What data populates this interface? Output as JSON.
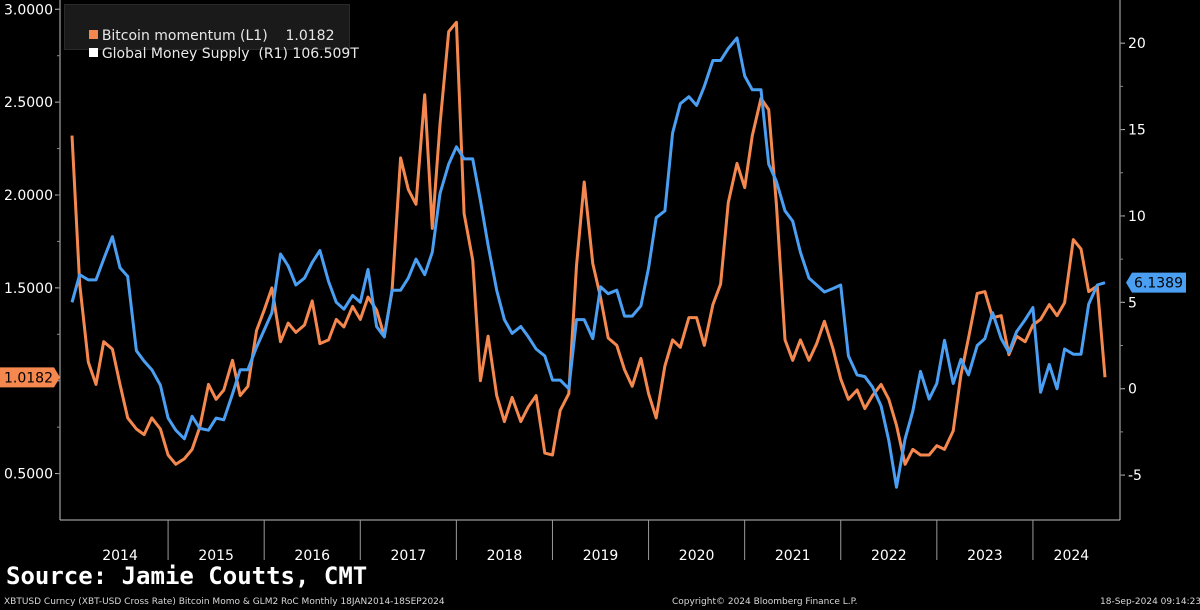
{
  "legend": {
    "series1_label": "Bitcoin momentum (L1)",
    "series1_value": "1.0182",
    "series2_label": "Global Money Supply  (R1)",
    "series2_value": "106.509T"
  },
  "source": "Source: Jamie Coutts, CMT",
  "footer": {
    "left": "XBTUSD Curncy (XBT-USD Cross Rate) Bitcoin Momo & GLM2 RoC  Monthly 18JAN2014-18SEP2024",
    "center": "Copyright© 2024 Bloomberg Finance L.P.",
    "right": "18-Sep-2024 09:14:23"
  },
  "colors": {
    "bitcoin": "#f5884e",
    "money": "#4a9ff2",
    "background": "#000000"
  },
  "chart_data": {
    "type": "line",
    "x_ticks": [
      "2014",
      "2015",
      "2016",
      "2017",
      "2018",
      "2019",
      "2020",
      "2021",
      "2022",
      "2023",
      "2024"
    ],
    "x_range": [
      2014.0,
      2024.75
    ],
    "y_left": {
      "ticks": [
        "0.5000",
        "1.0000",
        "1.5000",
        "2.0000",
        "2.5000",
        "3.0000"
      ],
      "ylim": [
        0.25,
        3.05
      ]
    },
    "y_right": {
      "ticks": [
        "-5",
        "0",
        "5",
        "10",
        "15",
        "20"
      ],
      "ylim": [
        -7.6,
        22.5
      ]
    },
    "last_value_labels": {
      "bitcoin": "1.0182",
      "money": "6.1389"
    },
    "series": [
      {
        "name": "Bitcoin momentum",
        "axis": "left",
        "x": [
          2014.0,
          2014.08,
          2014.17,
          2014.25,
          2014.33,
          2014.42,
          2014.5,
          2014.58,
          2014.67,
          2014.75,
          2014.83,
          2014.92,
          2015.0,
          2015.08,
          2015.17,
          2015.25,
          2015.33,
          2015.42,
          2015.5,
          2015.58,
          2015.67,
          2015.75,
          2015.83,
          2015.92,
          2016.0,
          2016.08,
          2016.17,
          2016.25,
          2016.33,
          2016.42,
          2016.5,
          2016.58,
          2016.67,
          2016.75,
          2016.83,
          2016.92,
          2017.0,
          2017.08,
          2017.17,
          2017.25,
          2017.33,
          2017.42,
          2017.5,
          2017.58,
          2017.67,
          2017.75,
          2017.83,
          2017.92,
          2018.0,
          2018.08,
          2018.17,
          2018.25,
          2018.33,
          2018.42,
          2018.5,
          2018.58,
          2018.67,
          2018.75,
          2018.83,
          2018.92,
          2019.0,
          2019.08,
          2019.17,
          2019.25,
          2019.33,
          2019.42,
          2019.5,
          2019.58,
          2019.67,
          2019.75,
          2019.83,
          2019.92,
          2020.0,
          2020.08,
          2020.17,
          2020.25,
          2020.33,
          2020.42,
          2020.5,
          2020.58,
          2020.67,
          2020.75,
          2020.83,
          2020.92,
          2021.0,
          2021.08,
          2021.17,
          2021.25,
          2021.33,
          2021.42,
          2021.5,
          2021.58,
          2021.67,
          2021.75,
          2021.83,
          2021.92,
          2022.0,
          2022.08,
          2022.17,
          2022.25,
          2022.33,
          2022.42,
          2022.5,
          2022.58,
          2022.67,
          2022.75,
          2022.83,
          2022.92,
          2023.0,
          2023.08,
          2023.17,
          2023.25,
          2023.33,
          2023.42,
          2023.5,
          2023.58,
          2023.67,
          2023.75,
          2023.83,
          2023.92,
          2024.0,
          2024.08,
          2024.17,
          2024.25,
          2024.33,
          2024.42,
          2024.5,
          2024.58,
          2024.67
        ],
        "values": [
          2.32,
          1.52,
          1.1,
          0.98,
          1.21,
          1.17,
          0.98,
          0.8,
          0.74,
          0.71,
          0.8,
          0.74,
          0.6,
          0.55,
          0.58,
          0.63,
          0.75,
          0.98,
          0.9,
          0.95,
          1.11,
          0.92,
          0.97,
          1.27,
          1.38,
          1.5,
          1.21,
          1.31,
          1.26,
          1.3,
          1.43,
          1.2,
          1.22,
          1.33,
          1.29,
          1.4,
          1.33,
          1.45,
          1.38,
          1.24,
          1.48,
          2.2,
          2.03,
          1.95,
          2.54,
          1.82,
          2.38,
          2.88,
          2.93,
          1.9,
          1.65,
          1.0,
          1.24,
          0.92,
          0.78,
          0.91,
          0.78,
          0.86,
          0.92,
          0.61,
          0.6,
          0.84,
          0.93,
          1.62,
          2.07,
          1.63,
          1.45,
          1.23,
          1.19,
          1.06,
          0.97,
          1.12,
          0.93,
          0.8,
          1.08,
          1.22,
          1.18,
          1.34,
          1.34,
          1.19,
          1.41,
          1.52,
          1.96,
          2.17,
          2.04,
          2.32,
          2.52,
          2.46,
          1.95,
          1.22,
          1.11,
          1.22,
          1.11,
          1.2,
          1.32,
          1.17,
          1.01,
          0.9,
          0.95,
          0.85,
          0.92,
          0.98,
          0.9,
          0.76,
          0.55,
          0.63,
          0.6,
          0.6,
          0.65,
          0.63,
          0.73,
          1.03,
          1.23,
          1.47,
          1.48,
          1.34,
          1.35,
          1.14,
          1.24,
          1.21,
          1.3,
          1.33,
          1.41,
          1.35,
          1.42,
          1.76,
          1.71,
          1.48,
          1.51
        ],
        "last_override": 1.0182
      },
      {
        "name": "Global Money Supply",
        "axis": "right",
        "x": [
          2014.0,
          2014.08,
          2014.17,
          2014.25,
          2014.33,
          2014.42,
          2014.5,
          2014.58,
          2014.67,
          2014.75,
          2014.83,
          2014.92,
          2015.0,
          2015.08,
          2015.17,
          2015.25,
          2015.33,
          2015.42,
          2015.5,
          2015.58,
          2015.67,
          2015.75,
          2015.83,
          2015.92,
          2016.0,
          2016.08,
          2016.17,
          2016.25,
          2016.33,
          2016.42,
          2016.5,
          2016.58,
          2016.67,
          2016.75,
          2016.83,
          2016.92,
          2017.0,
          2017.08,
          2017.17,
          2017.25,
          2017.33,
          2017.42,
          2017.5,
          2017.58,
          2017.67,
          2017.75,
          2017.83,
          2017.92,
          2018.0,
          2018.08,
          2018.17,
          2018.25,
          2018.33,
          2018.42,
          2018.5,
          2018.58,
          2018.67,
          2018.75,
          2018.83,
          2018.92,
          2019.0,
          2019.08,
          2019.17,
          2019.25,
          2019.33,
          2019.42,
          2019.5,
          2019.58,
          2019.67,
          2019.75,
          2019.83,
          2019.92,
          2020.0,
          2020.08,
          2020.17,
          2020.25,
          2020.33,
          2020.42,
          2020.5,
          2020.58,
          2020.67,
          2020.75,
          2020.83,
          2020.92,
          2021.0,
          2021.08,
          2021.17,
          2021.25,
          2021.33,
          2021.42,
          2021.5,
          2021.58,
          2021.67,
          2021.75,
          2021.83,
          2021.92,
          2022.0,
          2022.08,
          2022.17,
          2022.25,
          2022.33,
          2022.42,
          2022.5,
          2022.58,
          2022.67,
          2022.75,
          2022.83,
          2022.92,
          2023.0,
          2023.08,
          2023.17,
          2023.25,
          2023.33,
          2023.42,
          2023.5,
          2023.58,
          2023.67,
          2023.75,
          2023.83,
          2023.92,
          2024.0,
          2024.08,
          2024.17,
          2024.25,
          2024.33,
          2024.42,
          2024.5,
          2024.58,
          2024.67
        ],
        "values": [
          5.0,
          6.6,
          6.3,
          6.3,
          7.5,
          8.8,
          7.0,
          6.5,
          2.2,
          1.6,
          1.1,
          0.2,
          -1.7,
          -2.4,
          -2.9,
          -1.6,
          -2.3,
          -2.4,
          -1.7,
          -1.8,
          -0.3,
          1.1,
          1.1,
          2.4,
          3.4,
          4.4,
          7.8,
          7.1,
          6.0,
          6.4,
          7.3,
          8.0,
          6.2,
          5.0,
          4.6,
          5.4,
          5.0,
          6.9,
          3.6,
          3.0,
          5.7,
          5.7,
          6.4,
          7.5,
          6.6,
          7.9,
          11.3,
          13.0,
          14.0,
          13.3,
          13.3,
          10.9,
          8.3,
          5.7,
          4.0,
          3.2,
          3.6,
          3.0,
          2.3,
          1.9,
          0.5,
          0.5,
          0.0,
          4.0,
          4.0,
          2.9,
          5.9,
          5.5,
          5.7,
          4.2,
          4.2,
          4.8,
          7.0,
          9.9,
          10.3,
          14.8,
          16.5,
          16.9,
          16.4,
          17.5,
          19.0,
          19.0,
          19.7,
          20.3,
          18.1,
          17.3,
          17.3,
          13.0,
          12.0,
          10.3,
          9.7,
          7.9,
          6.4,
          6.0,
          5.6,
          5.8,
          6.0,
          1.9,
          0.8,
          0.7,
          0.1,
          -1.0,
          -3.0,
          -5.7,
          -2.9,
          -1.3,
          1.0,
          -0.6,
          0.3,
          2.8,
          0.3,
          1.7,
          0.8,
          2.5,
          2.9,
          4.4,
          2.9,
          2.1,
          3.3,
          4.0,
          4.7,
          -0.2,
          1.4,
          0.0,
          2.3,
          2.0,
          2.0,
          4.9,
          6.0
        ],
        "last_override": 6.1389
      }
    ]
  }
}
